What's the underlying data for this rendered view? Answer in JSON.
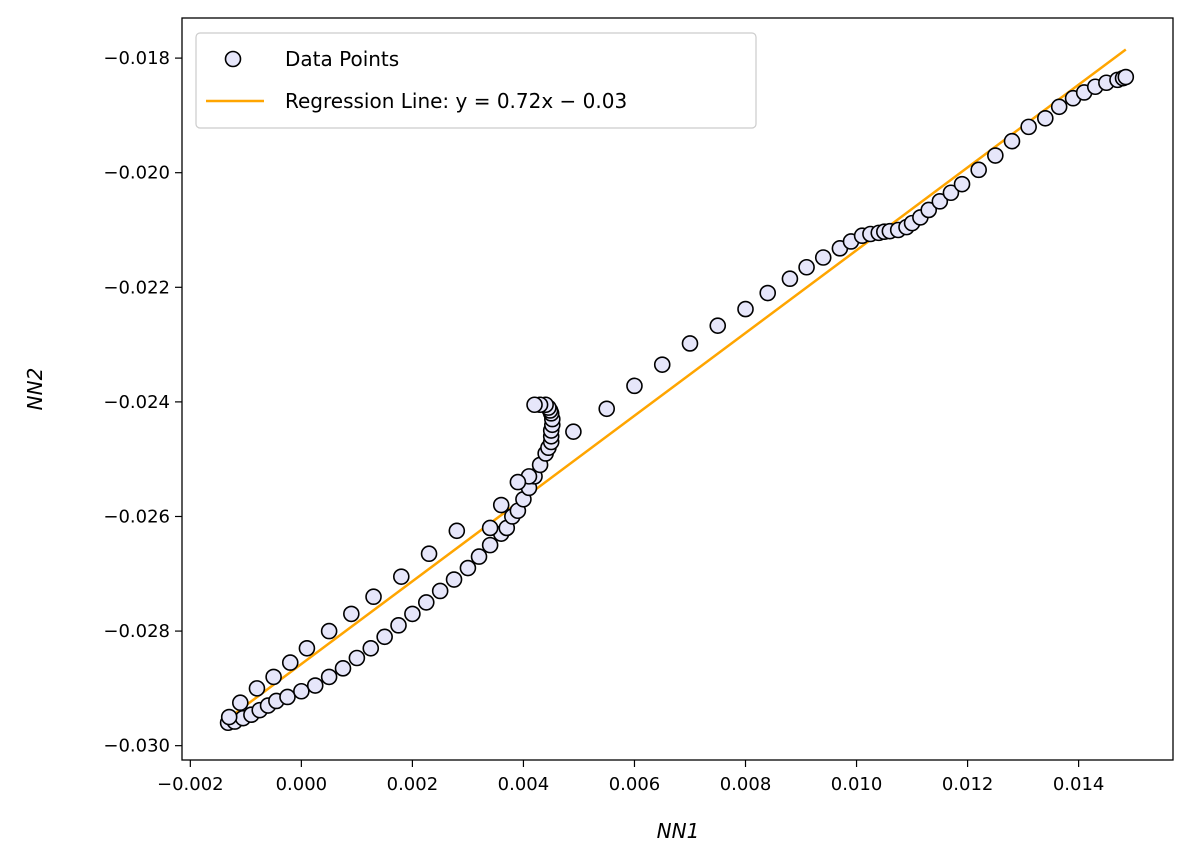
{
  "chart_data": {
    "type": "scatter",
    "xlabel": "NN1",
    "ylabel": "NN2",
    "xlim": [
      -0.00215,
      0.0157
    ],
    "ylim": [
      -0.03025,
      -0.0173
    ],
    "x_ticks": [
      -0.002,
      0.0,
      0.002,
      0.004,
      0.006,
      0.008,
      0.01,
      0.012,
      0.014
    ],
    "x_tick_labels": [
      "−0.002",
      "0.000",
      "0.002",
      "0.004",
      "0.006",
      "0.008",
      "0.010",
      "0.012",
      "0.014"
    ],
    "y_ticks": [
      -0.018,
      -0.02,
      -0.022,
      -0.024,
      -0.026,
      -0.028,
      -0.03
    ],
    "y_tick_labels": [
      "−0.018",
      "−0.020",
      "−0.022",
      "−0.024",
      "−0.026",
      "−0.028",
      "−0.030"
    ],
    "legend": {
      "placement": "upper-left",
      "entries": [
        {
          "label": "Data Points",
          "kind": "marker"
        },
        {
          "label": "Regression Line: y = 0.72x − 0.03",
          "kind": "line"
        }
      ]
    },
    "marker_color": "#e6e6fa",
    "marker_edge": "#000000",
    "line_color": "#ffa500",
    "regression_line": {
      "x": [
        -0.00135,
        0.01485
      ],
      "y": [
        -0.02955,
        -0.01785
      ]
    },
    "series": [
      {
        "name": "Data Points",
        "x": [
          -0.00132,
          -0.0012,
          -0.00105,
          -0.0009,
          -0.00075,
          -0.0006,
          -0.00045,
          -0.00025,
          0.0,
          0.00025,
          0.0005,
          0.00075,
          0.001,
          0.00125,
          0.0015,
          0.00175,
          0.002,
          0.00225,
          0.0025,
          0.00275,
          0.003,
          0.0032,
          0.0034,
          0.0036,
          0.0037,
          0.0038,
          0.0039,
          0.004,
          0.0041,
          0.0042,
          0.0043,
          0.0044,
          0.00445,
          0.0045,
          0.0045,
          0.0045,
          0.00452,
          0.00452,
          0.0045,
          0.00448,
          0.00445,
          0.0044,
          0.0043,
          0.0042,
          0.0041,
          0.0039,
          0.0036,
          0.0034,
          0.0028,
          0.0023,
          0.0018,
          0.0013,
          0.0009,
          0.0005,
          0.0001,
          -0.0002,
          -0.0005,
          -0.0008,
          -0.0011,
          -0.0013,
          0.0049,
          0.0055,
          0.006,
          0.0065,
          0.007,
          0.0075,
          0.008,
          0.0084,
          0.0088,
          0.0091,
          0.0094,
          0.0097,
          0.0099,
          0.0101,
          0.01025,
          0.0104,
          0.0105,
          0.0106,
          0.01075,
          0.0109,
          0.011,
          0.01115,
          0.0113,
          0.0115,
          0.0117,
          0.0119,
          0.0122,
          0.0125,
          0.0128,
          0.0131,
          0.0134,
          0.01365,
          0.0139,
          0.0141,
          0.0143,
          0.0145,
          0.0147,
          0.0148,
          0.01485
        ],
        "y": [
          -0.0296,
          -0.02958,
          -0.02952,
          -0.02946,
          -0.02938,
          -0.0293,
          -0.02922,
          -0.02915,
          -0.02905,
          -0.02895,
          -0.0288,
          -0.02865,
          -0.02847,
          -0.0283,
          -0.0281,
          -0.0279,
          -0.0277,
          -0.0275,
          -0.0273,
          -0.0271,
          -0.0269,
          -0.0267,
          -0.0265,
          -0.0263,
          -0.0262,
          -0.026,
          -0.0259,
          -0.0257,
          -0.0255,
          -0.0253,
          -0.0251,
          -0.0249,
          -0.0248,
          -0.0247,
          -0.0246,
          -0.0245,
          -0.0244,
          -0.0243,
          -0.0242,
          -0.02415,
          -0.0241,
          -0.02405,
          -0.02405,
          -0.02405,
          -0.0253,
          -0.0254,
          -0.0258,
          -0.0262,
          -0.02625,
          -0.02665,
          -0.02705,
          -0.0274,
          -0.0277,
          -0.028,
          -0.0283,
          -0.02855,
          -0.0288,
          -0.029,
          -0.02925,
          -0.0295,
          -0.02452,
          -0.02412,
          -0.02372,
          -0.02335,
          -0.02298,
          -0.02267,
          -0.02238,
          -0.0221,
          -0.02185,
          -0.02165,
          -0.02148,
          -0.02132,
          -0.0212,
          -0.0211,
          -0.02107,
          -0.02105,
          -0.02103,
          -0.02102,
          -0.021,
          -0.02095,
          -0.02088,
          -0.02078,
          -0.02065,
          -0.0205,
          -0.02035,
          -0.0202,
          -0.01995,
          -0.0197,
          -0.01945,
          -0.0192,
          -0.01905,
          -0.01885,
          -0.0187,
          -0.0186,
          -0.0185,
          -0.01843,
          -0.01838,
          -0.01835,
          -0.01833
        ]
      }
    ]
  }
}
